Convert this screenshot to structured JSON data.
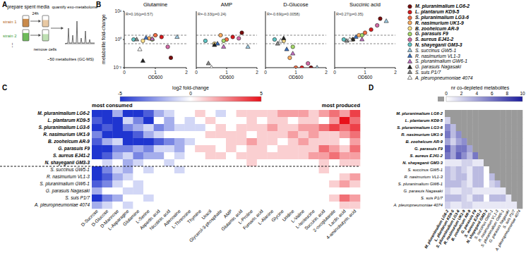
{
  "panel_labels": [
    "A",
    "B",
    "C",
    "D"
  ],
  "diagram": {
    "title": "prepare spent media",
    "items": [
      "strain 1",
      "strain 2",
      "⋮"
    ],
    "time": "24h",
    "step": "remove cells",
    "result_title": "quantify exo-metabolome",
    "result_note": "~50 metabolites (GC-MS)"
  },
  "strains": [
    {
      "name": "M. pluranimalium LG6-2",
      "color": "#7a0c0c",
      "marker": "circle"
    },
    {
      "name": "L. plantarum KD9-5",
      "color": "#d7191c",
      "marker": "circle"
    },
    {
      "name": "S. pluranimalium LG3-6",
      "color": "#f46d43",
      "marker": "circle"
    },
    {
      "name": "R. nasimurium UK1-9",
      "color": "#fdae61",
      "marker": "circle"
    },
    {
      "name": "B. zoohelcum AR-9",
      "color": "#fee08b",
      "marker": "circle"
    },
    {
      "name": "G. parasuis F9",
      "color": "#a6d96a",
      "marker": "circle"
    },
    {
      "name": "S. aureus EJ41-2",
      "color": "#d36ba6",
      "marker": "circle"
    },
    {
      "name": "N. shayeganii GM3-3",
      "color": "#5ec4c4",
      "marker": "circle"
    },
    {
      "name": "S. succinus GW5-1",
      "color": "#9ecae1",
      "marker": "triangle"
    },
    {
      "name": "R. nasimurium VL1-3",
      "color": "#3a6fbf",
      "marker": "triangle"
    },
    {
      "name": "S. pluranimalium GW6-1",
      "color": "#c26fc2",
      "marker": "triangle"
    },
    {
      "name": "G. parasuis Nagasaki",
      "color": "#222222",
      "marker": "triangle"
    },
    {
      "name": "S. suis P1/7",
      "color": "#888888",
      "marker": "triangle"
    },
    {
      "name": "A. pleuropneumoniae 4074",
      "color": "#ffffff",
      "marker": "triangle"
    }
  ],
  "chart_data": [
    {
      "type": "scatter",
      "title": "Glutamine",
      "annotation": "R=0.16(p=0.57)",
      "x_label": "OD600",
      "y_label": "metabolite fold-change",
      "log": "y",
      "xlim": [
        0,
        2
      ],
      "xticks": [
        0,
        1,
        2
      ],
      "ylim": [
        0.01,
        100
      ],
      "yticks": [
        {
          "value": 0.01,
          "label": "10⁻²"
        },
        {
          "value": 1,
          "label": "10⁰"
        },
        {
          "value": 100,
          "label": "10²"
        }
      ],
      "reference_lines": [
        0.5,
        2
      ],
      "x": [
        1.5,
        1.2,
        1.0,
        0.8,
        0.6,
        0.9,
        1.4,
        0.3,
        1.7,
        0.7,
        0.9,
        0.6,
        0.4,
        0.5
      ],
      "values": [
        0.05,
        1.5,
        2,
        1.2,
        0.8,
        1,
        0.3,
        1,
        1.5,
        1.3,
        1.1,
        0.03,
        1,
        0.2
      ]
    },
    {
      "type": "scatter",
      "title": "AMP",
      "annotation": "R=-0.33(p=0.24)",
      "x_label": "OD600",
      "log": "y",
      "tick_labels": "x",
      "xlim": [
        0,
        2
      ],
      "xticks": [
        0,
        1,
        2
      ],
      "ylim": [
        0.01,
        100
      ],
      "yticks": [
        0.01,
        1,
        100
      ],
      "reference_lines": [
        0.5,
        2
      ],
      "x": [
        1.5,
        1.2,
        1.0,
        0.8,
        0.6,
        0.9,
        1.4,
        0.3,
        1.7,
        0.7,
        0.9,
        0.6,
        0.4,
        0.5
      ],
      "values": [
        3,
        1.5,
        1,
        2,
        0.5,
        0.8,
        1.2,
        0.8,
        0.3,
        0.5,
        0.3,
        0.4,
        0.02,
        0.01
      ]
    },
    {
      "type": "scatter",
      "title": "D-Glucose",
      "annotation": "R=-0.69(p=0.0058)",
      "x_label": "OD600",
      "log": "y",
      "tick_labels": "x",
      "xlim": [
        0,
        2
      ],
      "xticks": [
        0,
        1,
        2
      ],
      "ylim": [
        0.01,
        100
      ],
      "yticks": [
        0.01,
        1,
        100
      ],
      "reference_lines": [
        0.5,
        2
      ],
      "x": [
        1.5,
        1.2,
        1.0,
        0.8,
        0.6,
        0.9,
        1.4,
        0.3,
        1.7,
        0.7,
        0.9,
        0.6,
        0.4,
        0.5
      ],
      "values": [
        0.01,
        0.01,
        0.01,
        0.05,
        0.8,
        0.3,
        0.02,
        1,
        0.01,
        0.2,
        0.1,
        1.2,
        0.5,
        0.8
      ]
    },
    {
      "type": "scatter",
      "title": "Succinic acid",
      "annotation": "R=0.27(p=0.35)",
      "x_label": "OD600",
      "log": "y",
      "tick_labels": "x",
      "xlim": [
        0,
        2
      ],
      "xticks": [
        0,
        1,
        2
      ],
      "ylim": [
        0.01,
        100
      ],
      "yticks": [
        0.01,
        1,
        100
      ],
      "reference_lines": [
        0.5,
        2
      ],
      "x": [
        1.5,
        1.2,
        1.0,
        0.8,
        0.6,
        0.9,
        1.4,
        0.3,
        1.7,
        0.7,
        0.9,
        0.6,
        0.4,
        0.5
      ],
      "values": [
        30,
        5,
        3,
        2,
        1,
        2,
        10,
        1,
        20,
        1.5,
        1,
        1,
        0.8,
        1
      ]
    },
    {
      "type": "heatmap",
      "colorbar": {
        "title": "log2 fold-change",
        "range": [
          -5,
          5
        ],
        "ticks": [
          -5,
          0,
          5
        ]
      },
      "annotations": [
        "most consumed",
        "most produced"
      ],
      "rows": [
        "M. pluranimalium LG6-2",
        "L. plantarum KD9-5",
        "S. pluranimalium LG3-6",
        "R. nasimurium UK1-9",
        "B. zoohelcum AR-9",
        "G. parasuis F9",
        "S. aureus EJ41-2",
        "N. shayeganii GM3-3",
        "S. succinus GW5-1",
        "R. nasimurium VL1-3",
        "S. pluranimalium GW6-1",
        "G. parasuis Nagasaki",
        "S. suis P1/7",
        "A. pleuropneumoniae 4074"
      ],
      "columns": [
        "D-Sucrose",
        "D-Glucose",
        "D-Mannose",
        "L-Asparagine",
        "Glutamine",
        "L-Serine",
        "Aspartic acid",
        "Nicotinic acid",
        "Adenosine",
        "L-Threonine",
        "Thymine",
        "Uracil",
        "Glycerol-3-phosphate",
        "AMP",
        "Glutamic acid",
        "L-Proline",
        "Fumaric acid",
        "L-Alanine",
        "Glycine",
        "Uridine",
        "L-Valine",
        "L-Isoleucine",
        "Succinic acid",
        "2-oxoglutarate",
        "Lactic acid",
        "4-aminobutyric acid"
      ],
      "cells": [
        [
          -5,
          -5,
          -2,
          -5,
          -5,
          -4,
          -2,
          -1,
          0,
          0,
          1,
          0,
          -1,
          0,
          1,
          1,
          1,
          1,
          2,
          2,
          2,
          1,
          2,
          3,
          2,
          4
        ],
        [
          -4,
          -5,
          -5,
          -1,
          -3,
          -5,
          0,
          -2,
          0,
          -1,
          0,
          1,
          0,
          0,
          0,
          1,
          0,
          1,
          1,
          0,
          1,
          1,
          0,
          2,
          5,
          3
        ],
        [
          -5,
          -4,
          -5,
          -3,
          -2,
          -1,
          -3,
          -2,
          -1,
          -1,
          -1,
          0,
          1,
          0,
          1,
          1,
          1,
          2,
          1,
          1,
          2,
          2,
          3,
          4,
          3,
          4
        ],
        [
          -3,
          -5,
          -5,
          -5,
          -4,
          -2,
          -1,
          0,
          0,
          0,
          0,
          1,
          1,
          1,
          1,
          0,
          1,
          1,
          1,
          2,
          1,
          2,
          1,
          1,
          2,
          3
        ],
        [
          -4,
          -2,
          -1,
          -5,
          -5,
          -5,
          -4,
          -3,
          -2,
          -1,
          0,
          0,
          0,
          1,
          1,
          2,
          1,
          1,
          0,
          1,
          2,
          1,
          1,
          1,
          0,
          2
        ],
        [
          -5,
          -5,
          -3,
          -3,
          -2,
          -3,
          -1,
          -1,
          -2,
          0,
          1,
          1,
          0,
          1,
          0,
          1,
          1,
          0,
          1,
          1,
          1,
          1,
          3,
          2,
          1,
          3
        ],
        [
          -5,
          -4,
          -2,
          -1,
          -3,
          -2,
          -2,
          0,
          -1,
          0,
          0,
          1,
          1,
          0,
          1,
          1,
          1,
          1,
          1,
          1,
          1,
          2,
          2,
          3,
          2,
          2
        ],
        [
          0,
          -1,
          0,
          -2,
          -1,
          0,
          0,
          -1,
          0,
          0,
          0,
          0,
          0,
          0,
          0,
          1,
          0,
          0,
          0,
          0,
          0,
          0,
          1,
          0,
          1,
          1
        ],
        [
          -5,
          -3,
          -1,
          -2,
          0,
          -1,
          0,
          0,
          -1,
          0,
          0,
          0,
          0,
          0,
          0,
          0,
          0,
          0,
          0,
          0,
          0,
          0,
          1,
          0,
          0,
          0
        ],
        [
          -5,
          -4,
          -2,
          -1,
          0,
          0,
          0,
          0,
          0,
          0,
          0,
          0,
          0,
          0,
          0,
          0,
          0,
          0,
          0,
          0,
          0,
          0,
          0,
          0,
          1,
          2
        ],
        [
          -4,
          -3,
          -1,
          0,
          -1,
          0,
          0,
          0,
          0,
          0,
          0,
          0,
          0,
          0,
          0,
          0,
          0,
          0,
          0,
          0,
          0,
          0,
          0,
          1,
          2,
          1
        ],
        [
          -2,
          0,
          0,
          -1,
          -1,
          0,
          0,
          0,
          0,
          0,
          0,
          0,
          0,
          0,
          0,
          0,
          0,
          0,
          0,
          0,
          0,
          0,
          0,
          0,
          0,
          0
        ],
        [
          -5,
          -3,
          -2,
          0,
          0,
          -1,
          0,
          0,
          0,
          0,
          0,
          0,
          0,
          0,
          0,
          0,
          0,
          0,
          0,
          0,
          0,
          0,
          0,
          1,
          3,
          2
        ],
        [
          -2,
          -1,
          0,
          -1,
          0,
          0,
          0,
          0,
          0,
          0,
          0,
          0,
          0,
          0,
          0,
          0,
          0,
          0,
          0,
          0,
          0,
          0,
          0,
          0,
          1,
          1
        ]
      ]
    },
    {
      "type": "heatmap",
      "colorbar": {
        "title": "nr co-depleted metabolites",
        "range": [
          0,
          10
        ],
        "ticks": [
          0,
          2,
          4,
          6,
          8,
          10
        ]
      },
      "rows": [
        "M. pluranimalium LG6-2",
        "L. plantarum KD9-5",
        "S. pluranimalium LG3-6",
        "R. nasimurium UK1-9",
        "B. zoohelcum AR-9",
        "G. parasuis F9",
        "S. aureus EJ41-2",
        "N. shayeganii GM3-3",
        "S. succinus GW5-1",
        "R. nasimurium VL1-3",
        "S. pluranimalium GW6-1",
        "G. parasuis Nagasaki",
        "S. suis P1/7",
        "A. pleuropneumoniae 4074"
      ],
      "columns": [
        "M. pluranimalium LG6-2",
        "L. plantarum KD9-5",
        "S. pluranimalium LG3-6",
        "R. nasimurium UK1-9",
        "B. zoohelcum AR-9",
        "G. parasuis F9",
        "S. aureus EJ41-2",
        "N. shayeganii GM3-3",
        "S. succinus GW5-1",
        "R. nasimurium VL1-3",
        "S. pluranimalium GW6-1",
        "G. parasuis Nagasaki",
        "S. suis P1/7",
        "A. pleuropneumoniae 4074"
      ],
      "cells": [
        [],
        [
          2
        ],
        [
          5,
          3
        ],
        [
          6,
          3,
          5
        ],
        [
          4,
          2,
          4,
          5
        ],
        [
          7,
          4,
          6,
          6,
          4
        ],
        [
          6,
          4,
          7,
          5,
          3,
          6
        ],
        [
          1,
          1,
          1,
          2,
          2,
          1,
          1
        ],
        [
          3,
          2,
          3,
          2,
          1,
          3,
          3,
          0
        ],
        [
          3,
          2,
          3,
          3,
          1,
          3,
          3,
          0,
          3
        ],
        [
          3,
          3,
          3,
          2,
          1,
          3,
          3,
          0,
          2,
          3
        ],
        [
          2,
          1,
          1,
          2,
          2,
          1,
          1,
          1,
          1,
          1,
          1
        ],
        [
          3,
          3,
          3,
          2,
          1,
          3,
          3,
          0,
          3,
          3,
          3,
          1
        ],
        [
          2,
          1,
          1,
          2,
          2,
          1,
          1,
          1,
          1,
          1,
          1,
          1,
          1
        ]
      ]
    }
  ]
}
